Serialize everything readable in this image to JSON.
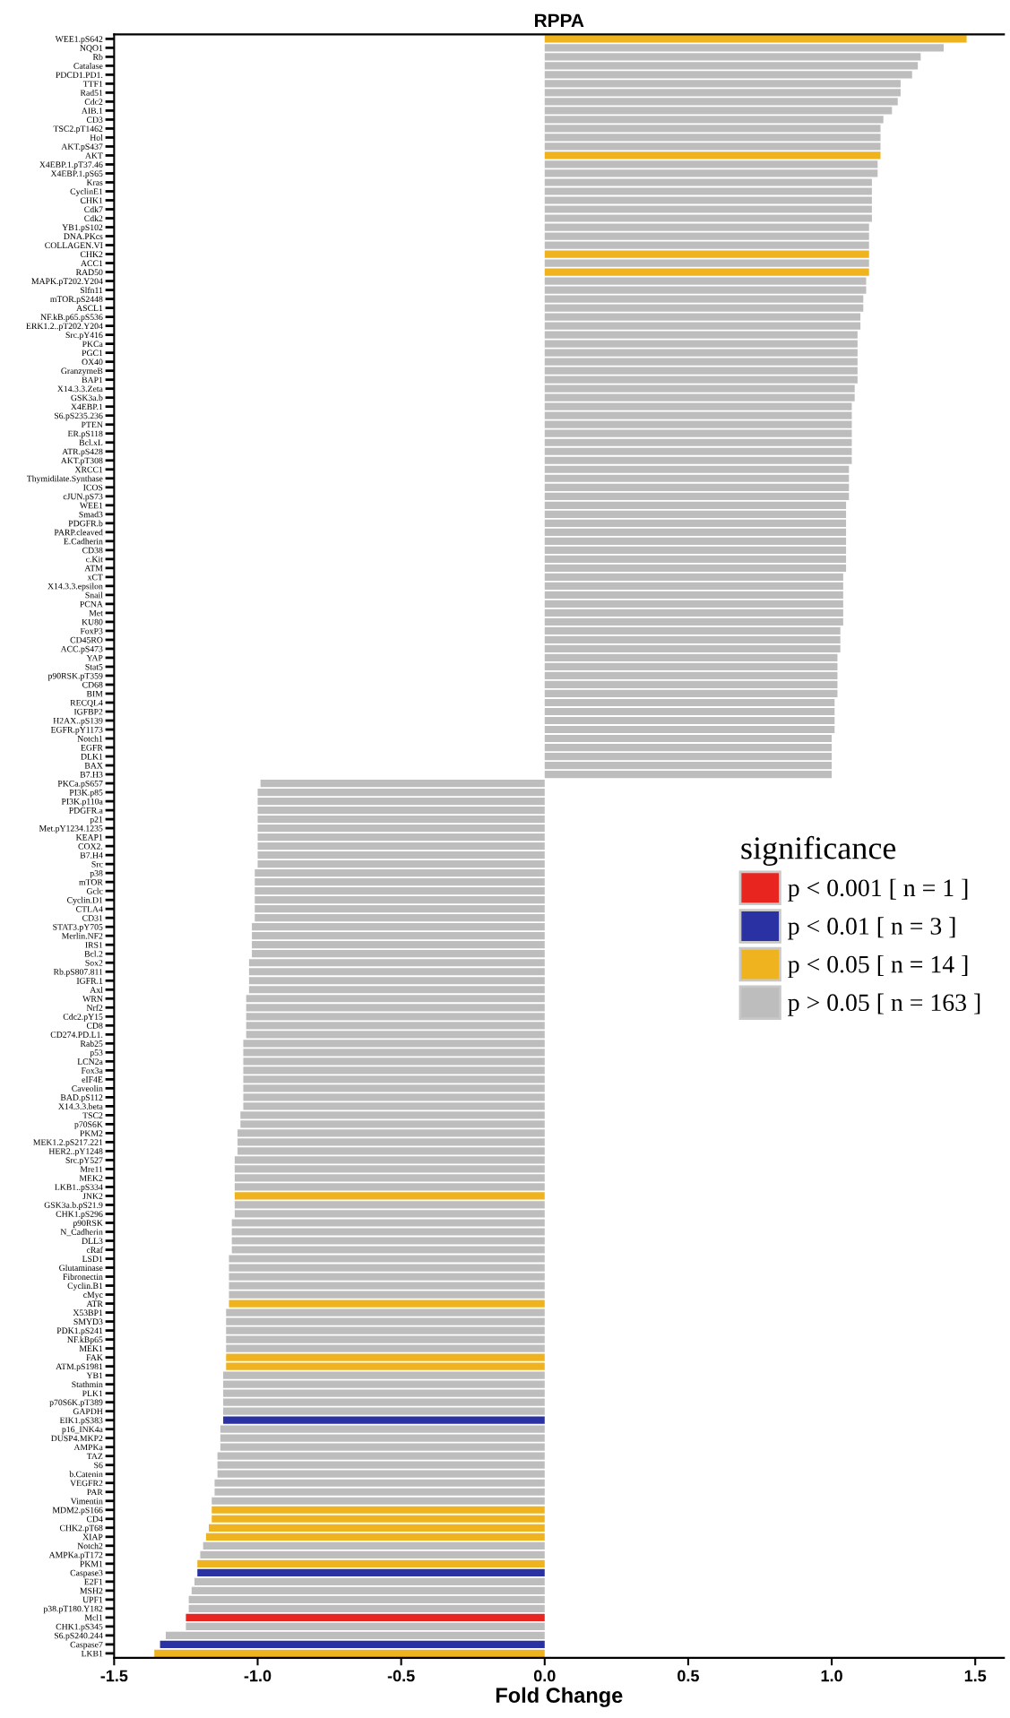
{
  "chart_data": {
    "type": "bar",
    "orientation": "horizontal",
    "title": "RPPA",
    "xlabel": "Fold Change",
    "legend_title": "significance",
    "legend": "right",
    "grid": false,
    "xlim": [
      -1.5,
      1.6
    ],
    "xticks": [
      -1.5,
      {
        "value": -1,
        "label": "-1.0"
      },
      -0.5,
      {
        "value": 0,
        "label": "0.0"
      },
      0.5,
      {
        "value": 1,
        "label": "1.0"
      },
      1.5
    ],
    "categories": [
      "WEE1.pS642",
      "NQO1",
      "Rb",
      "Catalase",
      "PDCD1.PD1.",
      "TTF1",
      "Rad51",
      "Cdc2",
      "AIB.1",
      "CD3",
      "TSC2.pT1462",
      "Hol",
      "AKT.pS437",
      "AKT",
      "X4EBP.1.pT37.46",
      "X4EBP.1.pS65",
      "Kras",
      "CyclinE1",
      "CHK1",
      "Cdk7",
      "Cdk2",
      "YB1.pS102",
      "DNA.PKcs",
      "COLLAGEN.VI",
      "CHK2",
      "ACC1",
      "RAD50",
      "MAPK.pT202.Y204",
      "Slfn11",
      "mTOR.pS2448",
      "ASCL1",
      "NF.kB.p65.pS536",
      "ERK1.2..pT202.Y204",
      "Src.pY416",
      "PKCa",
      "PGC1",
      "OX40",
      "GranzymeB",
      "BAP1",
      "X14.3.3.Zeta",
      "GSK3a.b",
      "X4EBP.1",
      "S6.pS235.236",
      "PTEN",
      "ER.pS118",
      "Bcl.xL",
      "ATR.pS428",
      "AKT.pT308",
      "XRCC1",
      "Thymidilate.Synthase",
      "ICOS",
      "cJUN.pS73",
      "WEE1",
      "Smad3",
      "PDGFR.b",
      "PARP.cleaved",
      "E.Cadherin",
      "CD38",
      "c.Kit",
      "ATM",
      "xCT",
      "X14.3.3.epsilon",
      "Snail",
      "PCNA",
      "Met",
      "KU80",
      "FoxP3",
      "CD45RO",
      "ACC.pS473",
      "YAP",
      "Stat5",
      "p90RSK.pT359",
      "CD68",
      "BIM",
      "RECQL4",
      "IGFBP2",
      "H2AX..pS139",
      "EGFR.pY1173",
      "Notch1",
      "EGFR",
      "DLK1",
      "BAX",
      "B7.H3",
      "PKCa.pS657",
      "PI3K.p85",
      "PI3K.p110a",
      "PDGFR.a",
      "p21",
      "Met.pY1234.1235",
      "KEAP1",
      "COX2.",
      "B7.H4",
      "Src",
      "p38",
      "mTOR",
      "Gclc",
      "Cyclin.D1",
      "CTLA4",
      "CD31",
      "STAT3.pY705",
      "Merlin.NF2",
      "IRS1",
      "Bcl.2",
      "Sox2",
      "Rb.pS807.811",
      "IGFR.1",
      "Axl",
      "WRN",
      "Nrf2",
      "Cdc2.pY15",
      "CD8",
      "CD274.PD.L1.",
      "Rab25",
      "p53",
      "LCN2a",
      "Fox3a",
      "eIF4E",
      "Caveolin",
      "BAD.pS112",
      "X14.3.3.beta",
      "TSC2",
      "p70S6K",
      "PKM2",
      "MEK1.2.pS217.221",
      "HER2..pY1248",
      "Src.pY527",
      "Mre11",
      "MEK2",
      "LKB1..pS334",
      "JNK2",
      "GSK3a.b.pS21.9",
      "CHK1.pS296",
      "p90RSK",
      "N_Cadherin",
      "DLL3",
      "cRaf",
      "LSD1",
      "Glutaminase",
      "Fibronectin",
      "Cyclin.B1",
      "cMyc",
      "ATR",
      "X53BP1",
      "SMYD3",
      "PDK1.pS241",
      "NF.kBp65",
      "MEK1",
      "FAK",
      "ATM.pS1981",
      "YB1",
      "Stathmin",
      "PLK1",
      "p70S6K.pT389",
      "GAPDH",
      "EIK1.pS383",
      "p16_INK4a",
      "DUSP4.MKP2",
      "AMPKa",
      "TAZ",
      "S6",
      "b.Catenin",
      "VEGFR2",
      "PAR",
      "Vimentin",
      "MDM2.pS166",
      "CD4",
      "CHK2.pT68",
      "XIAP",
      "Notch2",
      "AMPKa.pT172",
      "PKM1",
      "Caspase3",
      "E2F1",
      "MSH2",
      "UPF1",
      "p38.pT180.Y182",
      "Mcl1",
      "CHK1.pS345",
      "S6.pS240.244",
      "Caspase7",
      "LKB1"
    ],
    "series": [
      {
        "name": "p < 0.001 [ n = 1 ]",
        "color": "#e8261f",
        "values": [
          null,
          null,
          null,
          null,
          null,
          null,
          null,
          null,
          null,
          null,
          null,
          null,
          null,
          null,
          null,
          null,
          null,
          null,
          null,
          null,
          null,
          null,
          null,
          null,
          null,
          null,
          null,
          null,
          null,
          null,
          null,
          null,
          null,
          null,
          null,
          null,
          null,
          null,
          null,
          null,
          null,
          null,
          null,
          null,
          null,
          null,
          null,
          null,
          null,
          null,
          null,
          null,
          null,
          null,
          null,
          null,
          null,
          null,
          null,
          null,
          null,
          null,
          null,
          null,
          null,
          null,
          null,
          null,
          null,
          null,
          null,
          null,
          null,
          null,
          null,
          null,
          null,
          null,
          null,
          null,
          null,
          null,
          null,
          null,
          null,
          null,
          null,
          null,
          null,
          null,
          null,
          null,
          null,
          null,
          null,
          null,
          null,
          null,
          null,
          null,
          null,
          null,
          null,
          null,
          null,
          null,
          null,
          null,
          null,
          null,
          null,
          null,
          null,
          null,
          null,
          null,
          null,
          null,
          null,
          null,
          null,
          null,
          null,
          null,
          null,
          null,
          null,
          null,
          null,
          null,
          null,
          null,
          null,
          null,
          null,
          null,
          null,
          null,
          null,
          null,
          null,
          null,
          null,
          null,
          null,
          null,
          null,
          null,
          null,
          null,
          null,
          null,
          null,
          null,
          null,
          null,
          null,
          null,
          null,
          null,
          null,
          null,
          null,
          null,
          null,
          null,
          null,
          null,
          null,
          null,
          null,
          null,
          null,
          null,
          null,
          null,
          -1.25,
          null,
          null,
          null,
          null
        ]
      },
      {
        "name": "p < 0.01 [ n = 3 ]",
        "color": "#2a31a3",
        "values": [
          null,
          null,
          null,
          null,
          null,
          null,
          null,
          null,
          null,
          null,
          null,
          null,
          null,
          null,
          null,
          null,
          null,
          null,
          null,
          null,
          null,
          null,
          null,
          null,
          null,
          null,
          null,
          null,
          null,
          null,
          null,
          null,
          null,
          null,
          null,
          null,
          null,
          null,
          null,
          null,
          null,
          null,
          null,
          null,
          null,
          null,
          null,
          null,
          null,
          null,
          null,
          null,
          null,
          null,
          null,
          null,
          null,
          null,
          null,
          null,
          null,
          null,
          null,
          null,
          null,
          null,
          null,
          null,
          null,
          null,
          null,
          null,
          null,
          null,
          null,
          null,
          null,
          null,
          null,
          null,
          null,
          null,
          null,
          null,
          null,
          null,
          null,
          null,
          null,
          null,
          null,
          null,
          null,
          null,
          null,
          null,
          null,
          null,
          null,
          null,
          null,
          null,
          null,
          null,
          null,
          null,
          null,
          null,
          null,
          null,
          null,
          null,
          null,
          null,
          null,
          null,
          null,
          null,
          null,
          null,
          null,
          null,
          null,
          null,
          null,
          null,
          null,
          null,
          null,
          null,
          null,
          null,
          null,
          null,
          null,
          null,
          null,
          null,
          null,
          null,
          null,
          null,
          null,
          null,
          null,
          null,
          null,
          null,
          null,
          null,
          null,
          null,
          null,
          null,
          -1.12,
          null,
          null,
          null,
          null,
          null,
          null,
          null,
          null,
          null,
          null,
          null,
          null,
          null,
          null,
          null,
          null,
          -1.21,
          null,
          null,
          null,
          null,
          null,
          null,
          null,
          -1.34,
          null
        ]
      },
      {
        "name": "p < 0.05 [ n = 14 ]",
        "color": "#eeb31e",
        "values": [
          1.47,
          null,
          null,
          null,
          null,
          null,
          null,
          null,
          null,
          null,
          null,
          null,
          null,
          1.17,
          null,
          null,
          null,
          null,
          null,
          null,
          null,
          null,
          null,
          null,
          1.13,
          null,
          1.13,
          null,
          null,
          null,
          null,
          null,
          null,
          null,
          null,
          null,
          null,
          null,
          null,
          null,
          null,
          null,
          null,
          null,
          null,
          null,
          null,
          null,
          null,
          null,
          null,
          null,
          null,
          null,
          null,
          null,
          null,
          null,
          null,
          null,
          null,
          null,
          null,
          null,
          null,
          null,
          null,
          null,
          null,
          null,
          null,
          null,
          null,
          null,
          null,
          null,
          null,
          null,
          null,
          null,
          null,
          null,
          null,
          null,
          null,
          null,
          null,
          null,
          null,
          null,
          null,
          null,
          null,
          null,
          null,
          null,
          null,
          null,
          null,
          null,
          null,
          null,
          null,
          null,
          null,
          null,
          null,
          null,
          null,
          null,
          null,
          null,
          null,
          null,
          null,
          null,
          null,
          null,
          null,
          null,
          null,
          null,
          null,
          null,
          null,
          null,
          null,
          null,
          null,
          -1.08,
          null,
          null,
          null,
          null,
          null,
          null,
          null,
          null,
          null,
          null,
          null,
          -1.1,
          null,
          null,
          null,
          null,
          null,
          -1.11,
          -1.11,
          null,
          null,
          null,
          null,
          null,
          null,
          null,
          null,
          null,
          null,
          null,
          null,
          null,
          null,
          null,
          -1.16,
          -1.16,
          -1.17,
          -1.18,
          null,
          null,
          -1.21,
          null,
          null,
          null,
          null,
          null,
          null,
          null,
          null,
          null,
          -1.36
        ]
      },
      {
        "name": "p > 0.05 [ n = 163 ]",
        "color": "#bdbdbd",
        "values": [
          null,
          1.39,
          1.31,
          1.3,
          1.28,
          1.24,
          1.24,
          1.23,
          1.21,
          1.18,
          1.17,
          1.17,
          1.17,
          null,
          1.16,
          1.16,
          1.14,
          1.14,
          1.14,
          1.14,
          1.14,
          1.13,
          1.13,
          1.13,
          null,
          1.13,
          null,
          1.12,
          1.12,
          1.11,
          1.11,
          1.1,
          1.1,
          1.09,
          1.09,
          1.09,
          1.09,
          1.09,
          1.09,
          1.08,
          1.08,
          1.07,
          1.07,
          1.07,
          1.07,
          1.07,
          1.07,
          1.07,
          1.06,
          1.06,
          1.06,
          1.06,
          1.05,
          1.05,
          1.05,
          1.05,
          1.05,
          1.05,
          1.05,
          1.05,
          1.04,
          1.04,
          1.04,
          1.04,
          1.04,
          1.04,
          1.03,
          1.03,
          1.03,
          1.02,
          1.02,
          1.02,
          1.02,
          1.02,
          1.01,
          1.01,
          1.01,
          1.01,
          1.0,
          1.0,
          1.0,
          1.0,
          1.0,
          -0.99,
          -1.0,
          -1.0,
          -1.0,
          -1.0,
          -1.0,
          -1.0,
          -1.0,
          -1.0,
          -1.0,
          -1.01,
          -1.01,
          -1.01,
          -1.01,
          -1.01,
          -1.01,
          -1.02,
          -1.02,
          -1.02,
          -1.02,
          -1.03,
          -1.03,
          -1.03,
          -1.03,
          -1.04,
          -1.04,
          -1.04,
          -1.04,
          -1.04,
          -1.05,
          -1.05,
          -1.05,
          -1.05,
          -1.05,
          -1.05,
          -1.05,
          -1.05,
          -1.06,
          -1.06,
          -1.07,
          -1.07,
          -1.07,
          -1.08,
          -1.08,
          -1.08,
          -1.08,
          null,
          -1.08,
          -1.08,
          -1.09,
          -1.09,
          -1.09,
          -1.09,
          -1.1,
          -1.1,
          -1.1,
          -1.1,
          -1.1,
          null,
          -1.11,
          -1.11,
          -1.11,
          -1.11,
          -1.11,
          null,
          null,
          -1.12,
          -1.12,
          -1.12,
          -1.12,
          -1.12,
          null,
          -1.13,
          -1.13,
          -1.13,
          -1.14,
          -1.14,
          -1.14,
          -1.15,
          -1.15,
          -1.16,
          null,
          null,
          null,
          null,
          -1.19,
          -1.2,
          null,
          null,
          -1.22,
          -1.23,
          -1.24,
          -1.24,
          null,
          -1.25,
          -1.32,
          null,
          null
        ]
      }
    ]
  }
}
